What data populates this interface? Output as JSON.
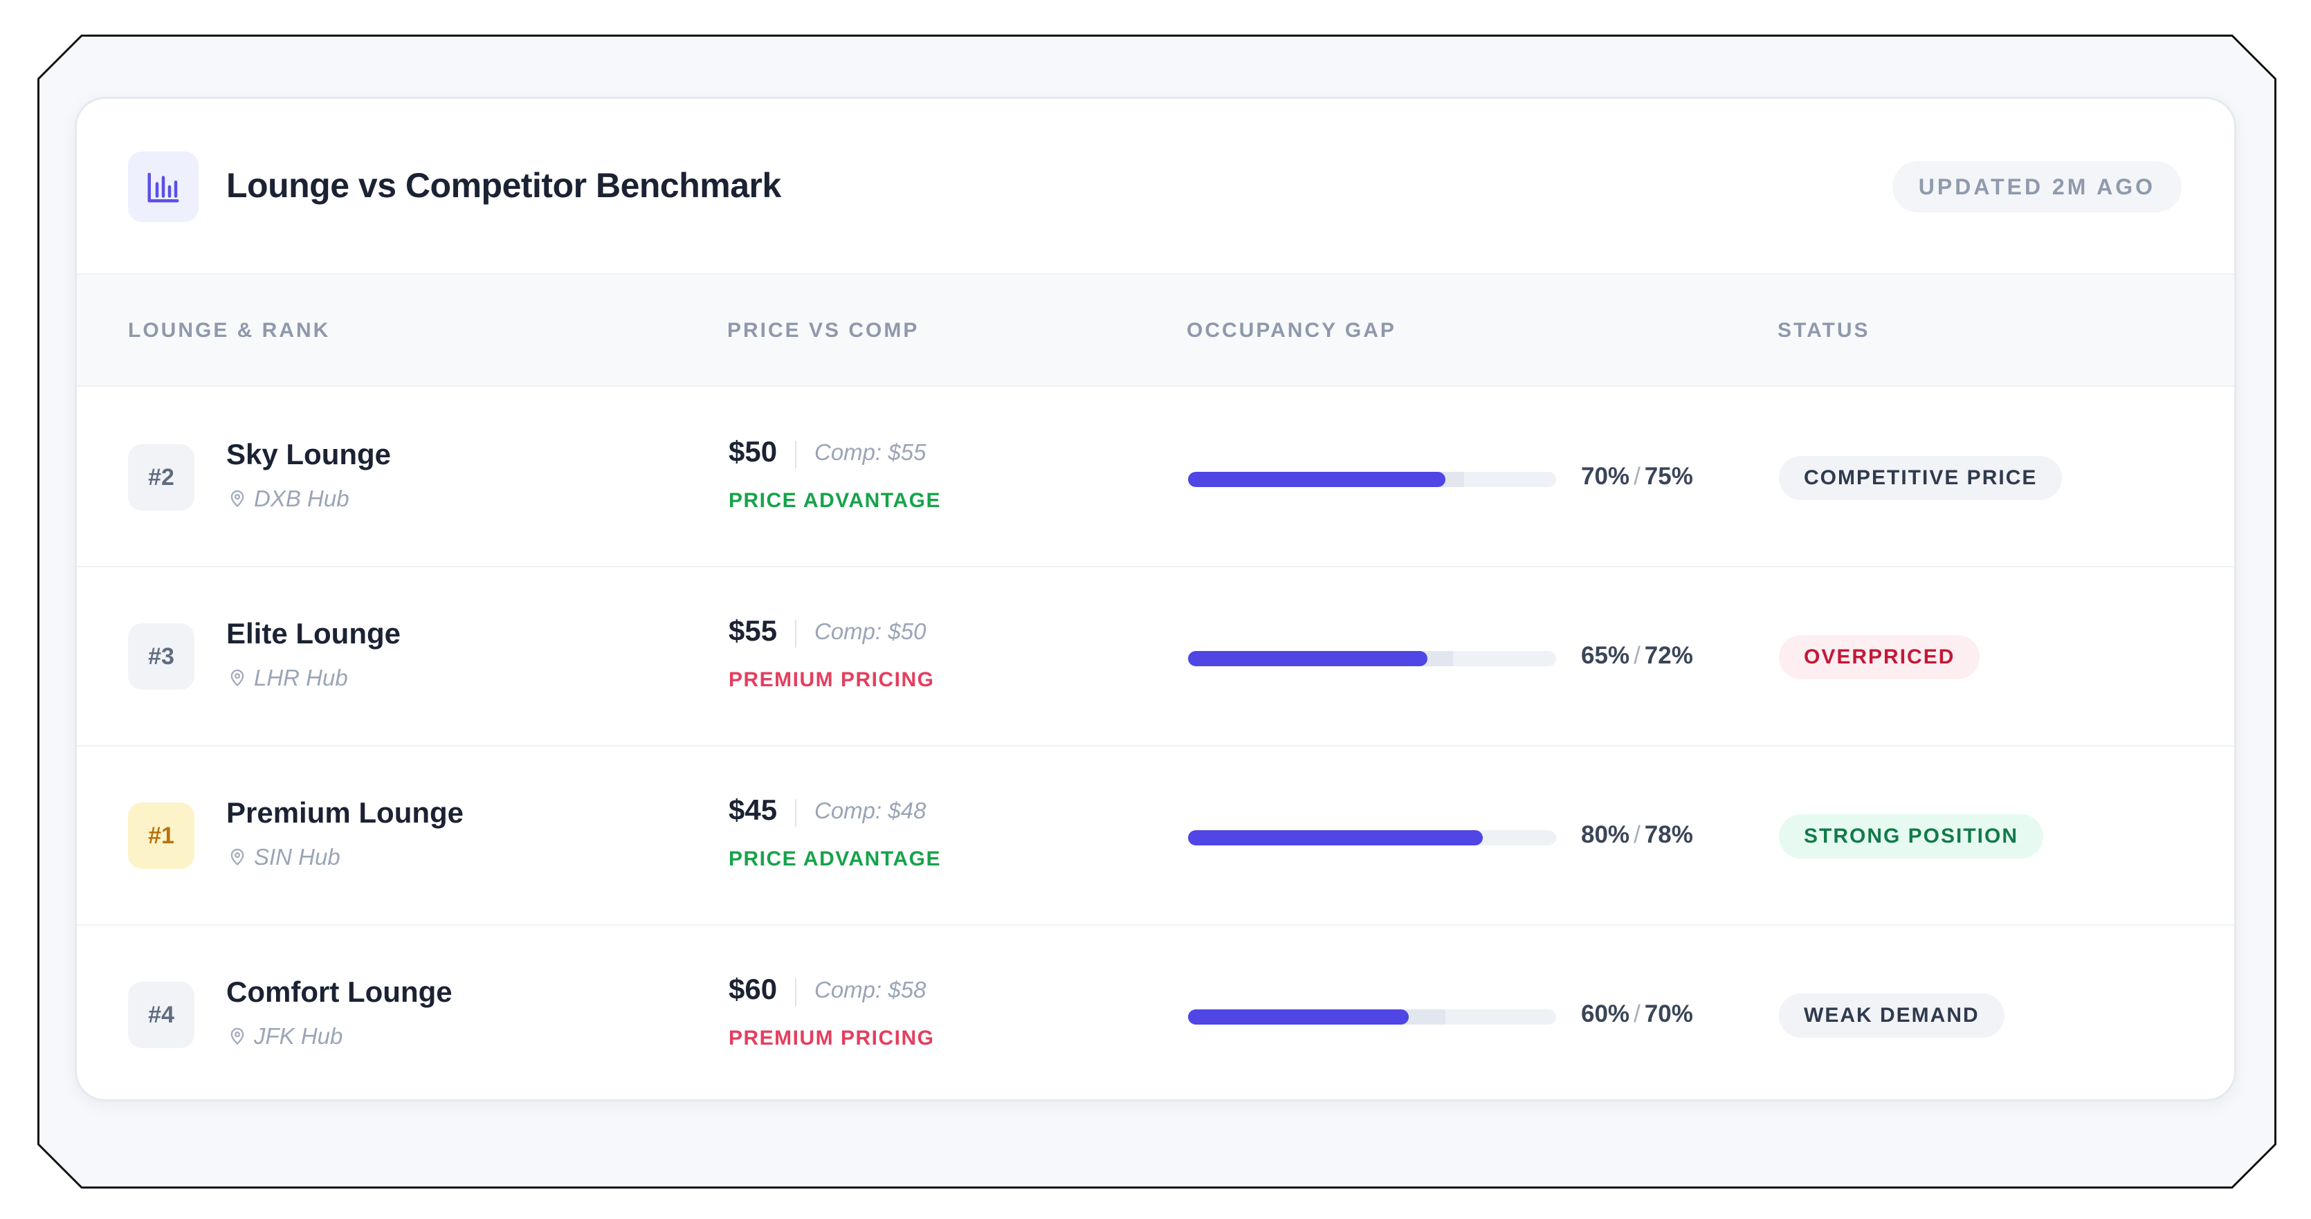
{
  "header": {
    "title": "Lounge vs Competitor Benchmark",
    "icon": "bar-chart-icon",
    "updated": "UPDATED 2M AGO"
  },
  "columns": {
    "lounge": "LOUNGE & RANK",
    "price": "PRICE VS COMP",
    "occupancy": "OCCUPANCY GAP",
    "status": "STATUS"
  },
  "colors": {
    "accent": "#4f46e5",
    "green": "#16a34a",
    "red": "#e53e5e"
  },
  "rows": [
    {
      "rank": "#2",
      "name": "Sky Lounge",
      "hub": "DXB Hub",
      "price": "$50",
      "comp": "Comp: $55",
      "tag": "PRICE ADVANTAGE",
      "tag_type": "green",
      "occ": "70%",
      "comp_occ": "75%",
      "occ_value": 0.7,
      "comp_occ_value": 0.75,
      "status": "COMPETITIVE PRICE",
      "status_type": "neutral"
    },
    {
      "rank": "#3",
      "name": "Elite Lounge",
      "hub": "LHR Hub",
      "price": "$55",
      "comp": "Comp: $50",
      "tag": "PREMIUM PRICING",
      "tag_type": "red",
      "occ": "65%",
      "comp_occ": "72%",
      "occ_value": 0.65,
      "comp_occ_value": 0.72,
      "status": "OVERPRICED",
      "status_type": "red"
    },
    {
      "rank": "#1",
      "name": "Premium Lounge",
      "hub": "SIN Hub",
      "price": "$45",
      "comp": "Comp: $48",
      "tag": "PRICE ADVANTAGE",
      "tag_type": "green",
      "occ": "80%",
      "comp_occ": "78%",
      "occ_value": 0.8,
      "comp_occ_value": 0.78,
      "status": "STRONG POSITION",
      "status_type": "green"
    },
    {
      "rank": "#4",
      "name": "Comfort Lounge",
      "hub": "JFK Hub",
      "price": "$60",
      "comp": "Comp: $58",
      "tag": "PREMIUM PRICING",
      "tag_type": "red",
      "occ": "60%",
      "comp_occ": "70%",
      "occ_value": 0.6,
      "comp_occ_value": 0.7,
      "status": "WEAK DEMAND",
      "status_type": "neutral"
    }
  ]
}
